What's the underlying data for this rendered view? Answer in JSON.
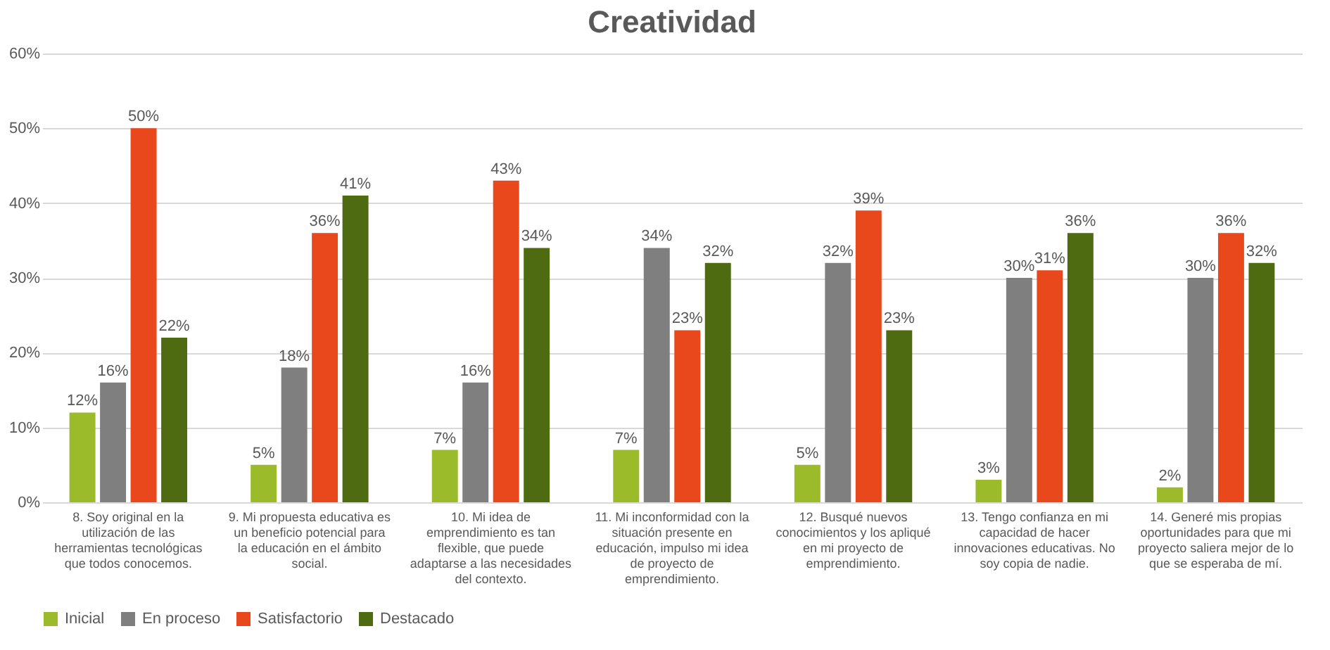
{
  "chart_data": {
    "type": "bar",
    "title": "Creatividad",
    "categories": [
      "8. Soy original en la utilización de las herramientas tecnológicas que todos conocemos.",
      "9. Mi propuesta educativa es un beneficio potencial para la educación en el ámbito social.",
      "10. Mi idea de emprendimiento es tan flexible, que puede adaptarse a las necesidades del contexto.",
      "11. Mi inconformidad con la situación presente en educación, impulso mi idea de proyecto de emprendimiento.",
      "12. Busqué nuevos conocimientos y los apliqué en mi proyecto de emprendimiento.",
      "13. Tengo confianza en mi capacidad de hacer innovaciones educativas. No soy copia de nadie.",
      "14. Generé mis propias oportunidades para que mi proyecto saliera mejor de lo que se esperaba de mí."
    ],
    "series": [
      {
        "name": "Inicial",
        "color": "#9bbb2b",
        "values": [
          12,
          5,
          7,
          7,
          5,
          3,
          2
        ],
        "value_labels": [
          "12%",
          "5%",
          "7%",
          "7%",
          "5%",
          "3%",
          "2%"
        ]
      },
      {
        "name": "En proceso",
        "color": "#7f7f7f",
        "values": [
          16,
          18,
          16,
          34,
          32,
          30,
          30
        ],
        "value_labels": [
          "16%",
          "18%",
          "16%",
          "34%",
          "32%",
          "30%",
          "30%"
        ]
      },
      {
        "name": "Satisfactorio",
        "color": "#e8481c",
        "values": [
          50,
          36,
          43,
          23,
          39,
          31,
          36
        ],
        "value_labels": [
          "50%",
          "36%",
          "43%",
          "23%",
          "39%",
          "31%",
          "36%"
        ]
      },
      {
        "name": "Destacado",
        "color": "#4e6b12",
        "values": [
          22,
          41,
          34,
          32,
          23,
          36,
          32
        ],
        "value_labels": [
          "22%",
          "41%",
          "34%",
          "32%",
          "23%",
          "36%",
          "32%"
        ]
      }
    ],
    "ylim": [
      0,
      60
    ],
    "yticks": [
      {
        "value": 0,
        "label": "0%"
      },
      {
        "value": 10,
        "label": "10%"
      },
      {
        "value": 20,
        "label": "20%"
      },
      {
        "value": 30,
        "label": "30%"
      },
      {
        "value": 40,
        "label": "40%"
      },
      {
        "value": 50,
        "label": "50%"
      },
      {
        "value": 60,
        "label": "60%"
      }
    ],
    "grid": "y",
    "legend": "bottom"
  }
}
